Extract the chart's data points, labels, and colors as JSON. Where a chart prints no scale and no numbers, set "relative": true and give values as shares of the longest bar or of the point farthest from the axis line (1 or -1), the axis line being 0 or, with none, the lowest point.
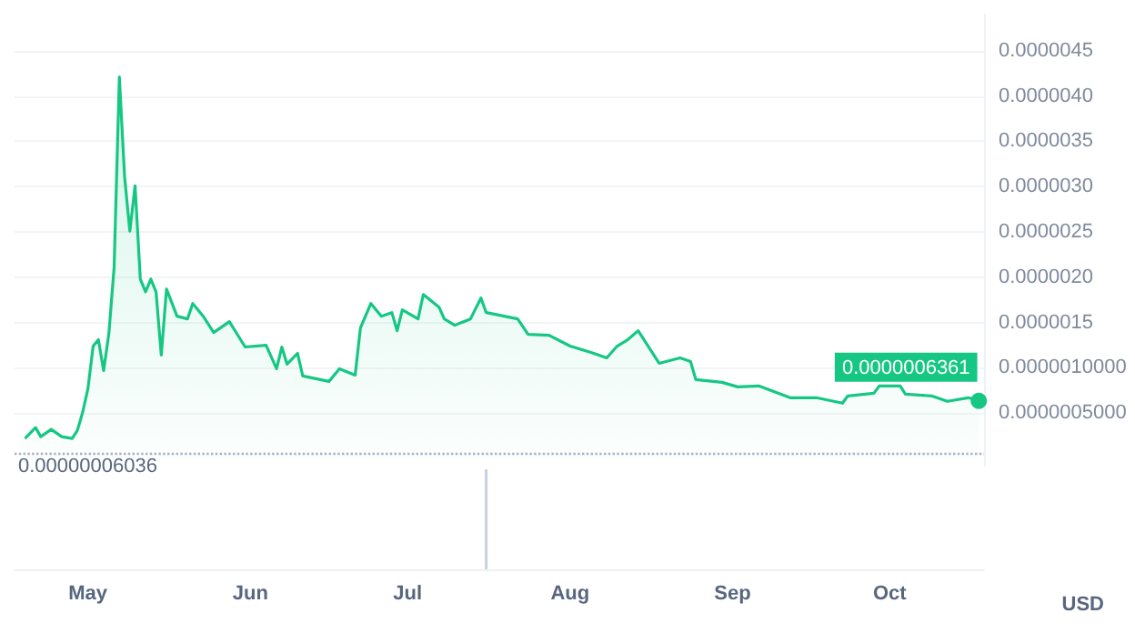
{
  "chart_data": [
    {
      "type": "area",
      "color": "#16c784",
      "x": [
        "--04-19",
        "--04-21",
        "--04-22",
        "--04-24",
        "--04-26",
        "--04-28",
        "--04-29",
        "--04-30",
        "--05-01",
        "--05-02",
        "--05-03",
        "--05-04",
        "--05-05",
        "--05-06",
        "--05-07",
        "--05-08",
        "--05-09",
        "--05-10",
        "--05-11",
        "--05-12",
        "--05-13",
        "--05-14",
        "--05-15",
        "--05-16",
        "--05-18",
        "--05-20",
        "--05-21",
        "--05-23",
        "--05-25",
        "--05-28",
        "--05-31",
        "--06-04",
        "--06-06",
        "--06-07",
        "--06-08",
        "--06-10",
        "--06-11",
        "--06-16",
        "--06-18",
        "--06-21",
        "--06-22",
        "--06-24",
        "--06-26",
        "--06-28",
        "--06-29",
        "--06-30",
        "--07-03",
        "--07-04",
        "--07-07",
        "--07-08",
        "--07-10",
        "--07-13",
        "--07-15",
        "--07-16",
        "--07-22",
        "--07-24",
        "--07-28",
        "--08-01",
        "--08-05",
        "--08-08",
        "--08-10",
        "--08-12",
        "--08-14",
        "--08-18",
        "--08-22",
        "--08-24",
        "--08-25",
        "--08-30",
        "--09-02",
        "--09-06",
        "--09-12",
        "--09-17",
        "--09-22",
        "--09-23",
        "--09-28",
        "--09-29",
        "--10-03",
        "--10-04",
        "--10-09",
        "--10-12",
        "--10-16",
        "--10-18"
      ],
      "values": [
        2.2e-07,
        3.4e-07,
        2.4e-07,
        3.2e-07,
        2.4e-07,
        2.2e-07,
        3.1e-07,
        5.1e-07,
        7.7e-07,
        1.24e-06,
        1.31e-06,
        9.7e-07,
        1.38e-06,
        2.11e-06,
        4.21e-06,
        3.11e-06,
        2.51e-06,
        3.01e-06,
        1.98e-06,
        1.84e-06,
        1.98e-06,
        1.84e-06,
        1.14e-06,
        1.87e-06,
        1.57e-06,
        1.54e-06,
        1.71e-06,
        1.57e-06,
        1.39e-06,
        1.51e-06,
        1.23e-06,
        1.25e-06,
        9.9e-07,
        1.23e-06,
        1.04e-06,
        1.16e-06,
        9.1e-07,
        8.5e-07,
        9.9e-07,
        9.2e-07,
        1.44e-06,
        1.71e-06,
        1.57e-06,
        1.61e-06,
        1.41e-06,
        1.64e-06,
        1.54e-06,
        1.81e-06,
        1.67e-06,
        1.54e-06,
        1.47e-06,
        1.54e-06,
        1.77e-06,
        1.61e-06,
        1.54e-06,
        1.37e-06,
        1.36e-06,
        1.24e-06,
        1.17e-06,
        1.11e-06,
        1.24e-06,
        1.31e-06,
        1.41e-06,
        1.05e-06,
        1.11e-06,
        1.07e-06,
        8.7e-07,
        8.4e-07,
        7.9e-07,
        8e-07,
        6.7e-07,
        6.7e-07,
        6.1e-07,
        6.9e-07,
        7.2e-07,
        8e-07,
        8e-07,
        7.1e-07,
        6.9e-07,
        6.3e-07,
        6.7e-07,
        6.361e-07
      ],
      "xlim": [
        "--04-17",
        "--10-19"
      ],
      "ylim": [
        -8e-08,
        4.9e-06
      ],
      "yticks": [
        {
          "value": 5e-07,
          "label": "0.0000005000"
        },
        {
          "value": 1e-06,
          "label": "0.0000010000"
        },
        {
          "value": 1.5e-06,
          "label": "0.0000015"
        },
        {
          "value": 2e-06,
          "label": "0.0000020"
        },
        {
          "value": 2.5e-06,
          "label": "0.0000025"
        },
        {
          "value": 3e-06,
          "label": "0.0000030"
        },
        {
          "value": 3.5e-06,
          "label": "0.0000035"
        },
        {
          "value": 4e-06,
          "label": "0.0000040"
        },
        {
          "value": 4.5e-06,
          "label": "0.0000045"
        }
      ],
      "ref_lines": [
        {
          "axis": "y",
          "value": 6.036e-08,
          "label": "0.00000006036",
          "color": "#a6b0c3",
          "line_style": "dotted"
        }
      ],
      "annotations": [
        {
          "text": "0.0000006361",
          "x": "--10-18",
          "y": 6.361e-07
        }
      ],
      "grid": "y",
      "tick_labels": "y"
    },
    {
      "type": "bar",
      "relative": true,
      "color": "#c8d0e0",
      "ylabel": "USD",
      "x": [
        "--07-16"
      ],
      "values": [
        1
      ],
      "xlim": [
        "--04-17",
        "--10-19"
      ],
      "xticks": [
        {
          "value": "--05-01",
          "label": "May"
        },
        {
          "value": "--06-01",
          "label": "Jun"
        },
        {
          "value": "--07-01",
          "label": "Jul"
        },
        {
          "value": "--08-01",
          "label": "Aug"
        },
        {
          "value": "--09-01",
          "label": "Sep"
        },
        {
          "value": "--10-01",
          "label": "Oct"
        }
      ],
      "tick_labels": "x"
    }
  ]
}
